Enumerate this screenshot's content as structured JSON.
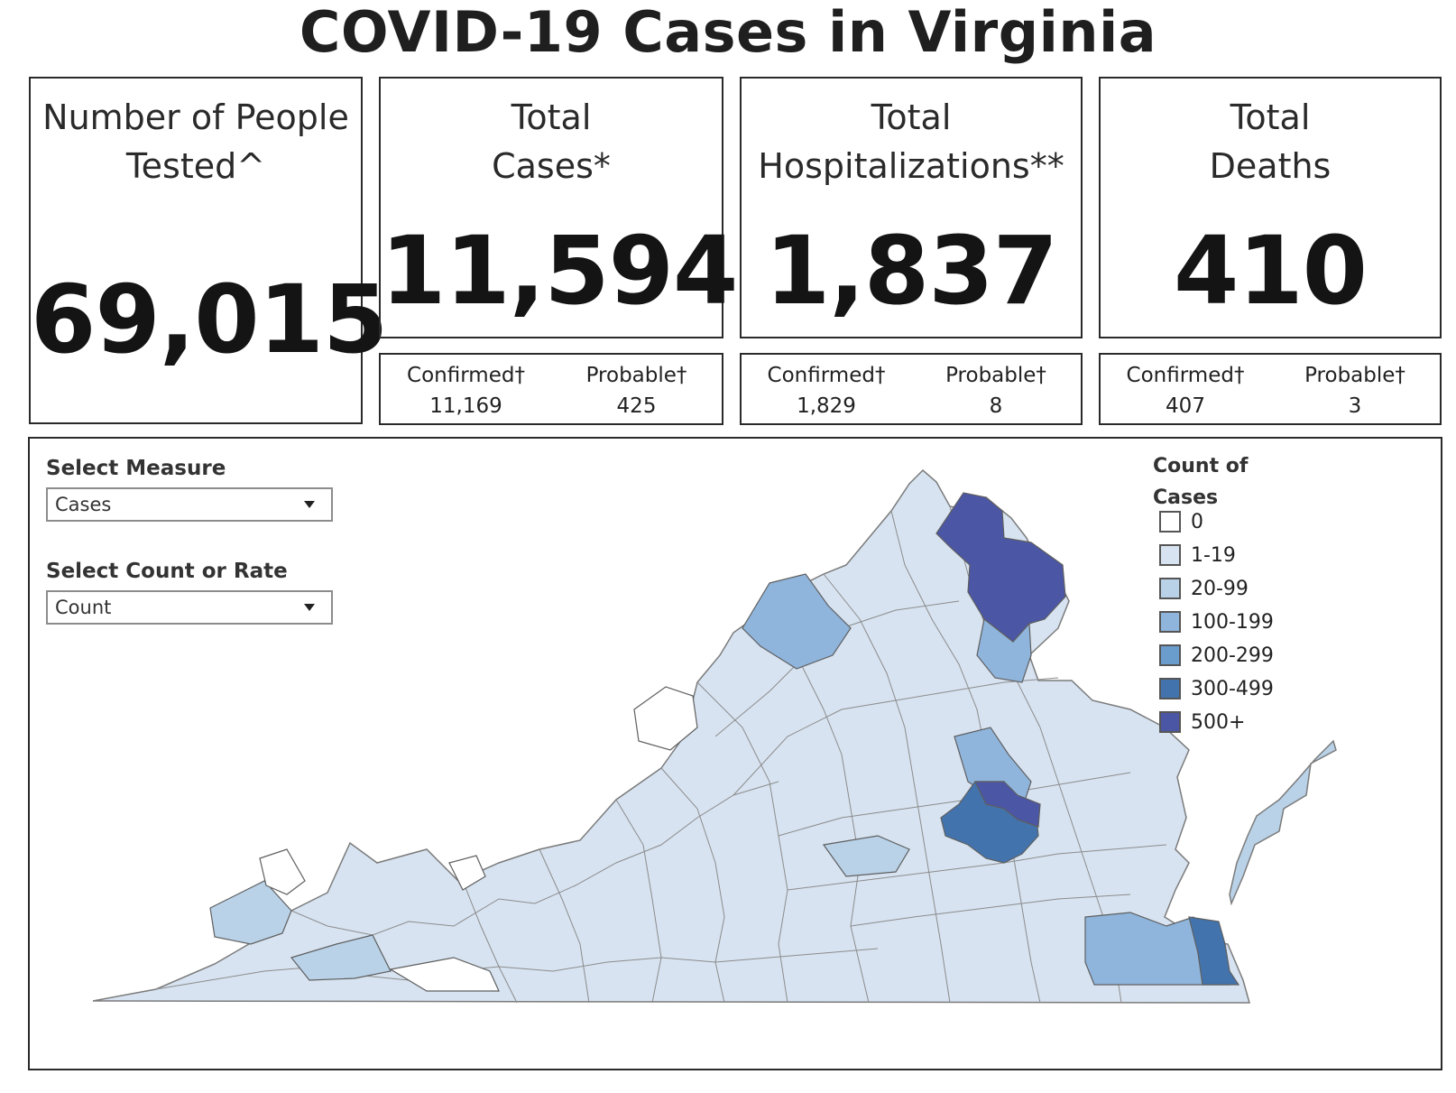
{
  "title": "COVID-19 Cases in Virginia",
  "cards": {
    "tested": {
      "label": "Number of People\nTested^",
      "value": "69,015"
    },
    "cases": {
      "label": "Total\nCases*",
      "value": "11,594",
      "confirmed_label": "Confirmed†",
      "confirmed": "11,169",
      "probable_label": "Probable†",
      "probable": "425"
    },
    "hospitalizations": {
      "label": "Total\nHospitalizations**",
      "value": "1,837",
      "confirmed_label": "Confirmed†",
      "confirmed": "1,829",
      "probable_label": "Probable†",
      "probable": "8"
    },
    "deaths": {
      "label": "Total\nDeaths",
      "value": "410",
      "confirmed_label": "Confirmed†",
      "confirmed": "407",
      "probable_label": "Probable†",
      "probable": "3"
    }
  },
  "controls": {
    "measure_label": "Select Measure",
    "measure_value": "Cases",
    "count_rate_label": "Select Count or Rate",
    "count_rate_value": "Count"
  },
  "legend": {
    "title": "Count of\nCases",
    "items": [
      {
        "label": "0",
        "color": "#ffffff"
      },
      {
        "label": "1-19",
        "color": "#d7e3f1"
      },
      {
        "label": "20-99",
        "color": "#b9d2e8"
      },
      {
        "label": "100-199",
        "color": "#8fb5dc"
      },
      {
        "label": "200-299",
        "color": "#6a9ccc"
      },
      {
        "label": "300-499",
        "color": "#4273ad"
      },
      {
        "label": "500+",
        "color": "#4b56a5"
      }
    ]
  },
  "colors": {
    "border": "#2a2a2a",
    "county_stroke": "#7b7b7b"
  }
}
